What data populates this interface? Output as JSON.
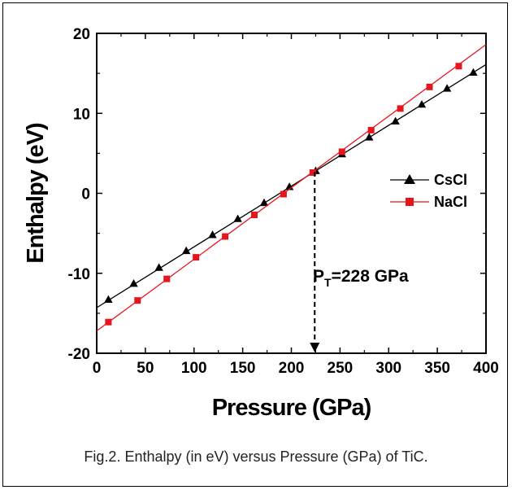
{
  "chart_data": {
    "type": "line",
    "xlabel": "Pressure (GPa)",
    "ylabel": "Enthalpy (eV)",
    "xlim": [
      0,
      400
    ],
    "ylim": [
      -20,
      20
    ],
    "x_ticks": [
      0,
      50,
      100,
      150,
      200,
      250,
      300,
      350,
      400
    ],
    "y_ticks": [
      -20,
      -10,
      0,
      10,
      20
    ],
    "grid": false,
    "legend_position": "right",
    "series": [
      {
        "name": "CsCl",
        "color": "#000000",
        "marker": "triangle",
        "line_x": [
          0,
          400
        ],
        "line_y": [
          -14.3,
          16.1
        ],
        "x": [
          12,
          38,
          64,
          92,
          119,
          145,
          172,
          198,
          225,
          252,
          280,
          307,
          334,
          360,
          387
        ],
        "y": [
          -13.3,
          -11.3,
          -9.3,
          -7.2,
          -5.2,
          -3.2,
          -1.2,
          0.8,
          2.8,
          4.9,
          7.0,
          9.0,
          11.1,
          13.1,
          15.1
        ]
      },
      {
        "name": "NaCl",
        "color": "#e8141c",
        "marker": "square",
        "line_x": [
          0,
          400
        ],
        "line_y": [
          -17.2,
          18.6
        ],
        "x": [
          12,
          42,
          72,
          102,
          132,
          162,
          192,
          222,
          252,
          282,
          312,
          342,
          372
        ],
        "y": [
          -16.1,
          -13.4,
          -10.7,
          -8.0,
          -5.4,
          -2.7,
          -0.1,
          2.6,
          5.2,
          7.9,
          10.6,
          13.3,
          15.9
        ]
      }
    ],
    "annotation": {
      "text_main": "P",
      "text_sub": "T",
      "text_rest": "=228 GPa",
      "arrow_x": 224,
      "arrow_from_y": 2.7,
      "arrow_to_y": -20
    }
  },
  "caption": "Fig.2. Enthalpy (in eV) versus Pressure (GPa) of TiC."
}
